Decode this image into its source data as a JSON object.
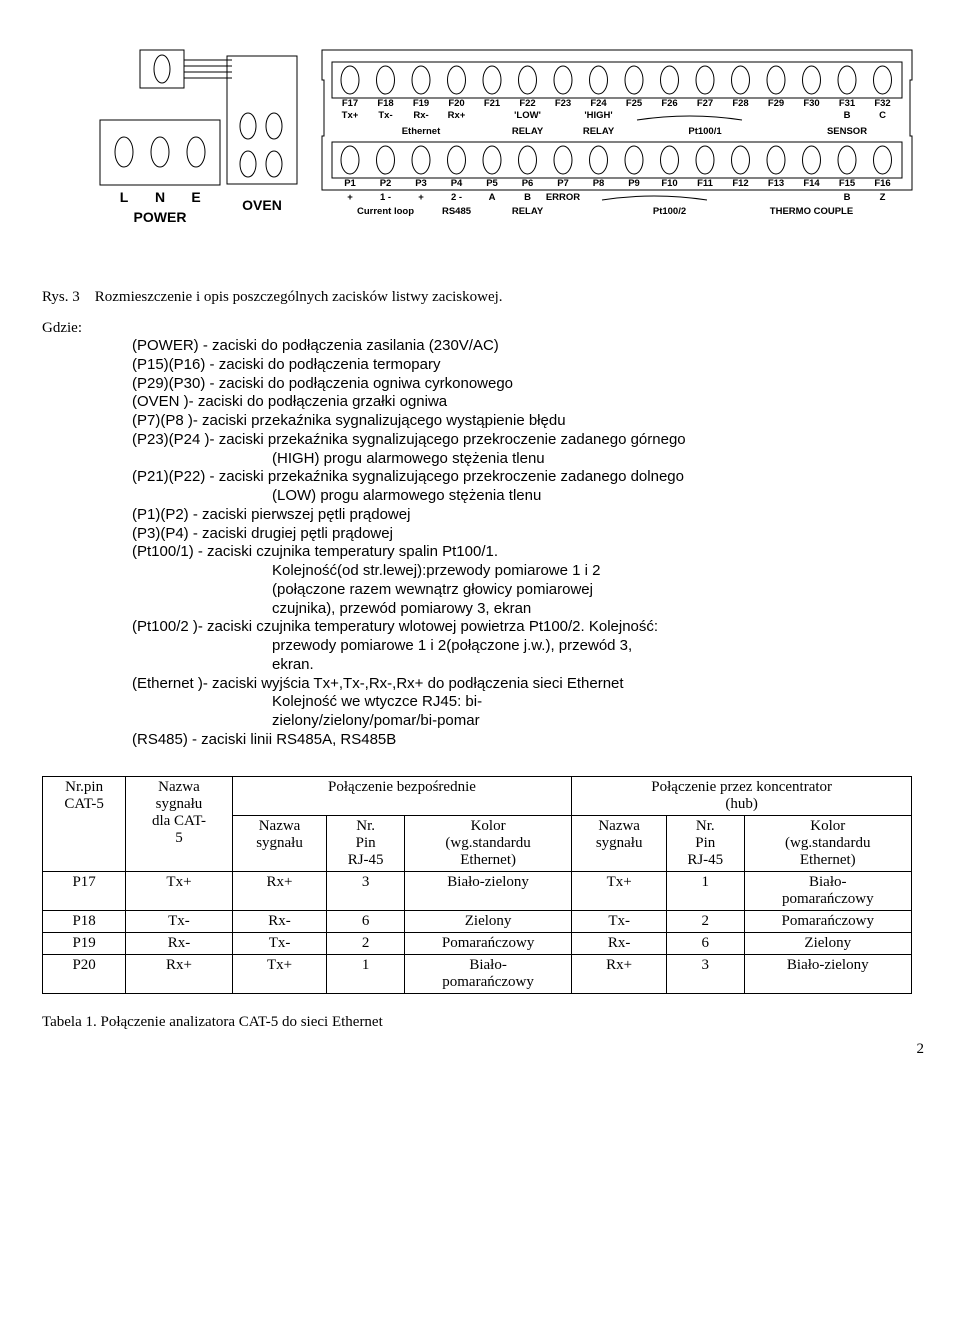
{
  "diagram": {
    "power": {
      "letters": [
        "L",
        "N",
        "E"
      ],
      "label": "POWER"
    },
    "oven_label": "OVEN",
    "top_pins": {
      "names": [
        "F17",
        "F18",
        "F19",
        "F20",
        "F21",
        "F22",
        "F23",
        "F24",
        "F25",
        "F26",
        "F27",
        "F28",
        "F29",
        "F30",
        "F31",
        "F32"
      ],
      "signals": [
        "Tx+",
        "Tx-",
        "Rx-",
        "Rx+",
        "",
        "'LOW'",
        "",
        "'HIGH'",
        "",
        "",
        "",
        "",
        "",
        "",
        "B",
        "C"
      ],
      "labels": [
        "",
        "",
        "Ethernet",
        "",
        "",
        "RELAY",
        "",
        "RELAY",
        "",
        "",
        "Pt100/1",
        "",
        "",
        "",
        "SENSOR",
        ""
      ]
    },
    "bottom_pins": {
      "names": [
        "P1",
        "P2",
        "P3",
        "P4",
        "P5",
        "P6",
        "P7",
        "P8",
        "P9",
        "F10",
        "F11",
        "F12",
        "F13",
        "F14",
        "F15",
        "F16"
      ],
      "signals": [
        "+",
        "1 -",
        "+",
        "2 -",
        "A",
        "B",
        "ERROR",
        "",
        "",
        "",
        "",
        "",
        "",
        "",
        "B",
        "Z"
      ],
      "labels": [
        "",
        "Current loop",
        "",
        "RS485",
        "",
        "RELAY",
        "",
        "",
        "",
        "Pt100/2",
        "",
        "",
        "",
        "THERMO COUPLE",
        "",
        ""
      ]
    }
  },
  "fig_caption": {
    "prefix": "Rys. 3",
    "text": "Rozmieszczenie i opis poszczególnych zacisków listwy zaciskowej."
  },
  "gdzie_label": "Gdzie:",
  "defs": [
    "(POWER)  - zaciski do podłączenia zasilania (230V/AC)",
    "(P15)(P16)  - zaciski do podłączenia termopary",
    "(P29)(P30) - zaciski do podłączenia ogniwa cyrkonowego",
    "(OVEN )- zaciski do podłączenia grzałki ogniwa",
    "(P7)(P8 )- zaciski przekaźnika sygnalizującego wystąpienie błędu",
    "(P23)(P24 )- zaciski przekaźnika sygnalizującego przekroczenie zadanego górnego"
  ],
  "defs_high": "(HIGH) progu alarmowego stężenia tlenu",
  "defs2": [
    "(P21)(P22)  - zaciski przekaźnika sygnalizującego przekroczenie  zadanego dolnego"
  ],
  "defs_low": "(LOW) progu alarmowego stężenia tlenu",
  "defs3": [
    "(P1)(P2)  - zaciski pierwszej pętli prądowej",
    "(P3)(P4) - zaciski drugiej pętli prądowej",
    "(Pt100/1) - zaciski czujnika temperatury spalin Pt100/1."
  ],
  "kolej1a": "Kolejność(od str.lewej):przewody pomiarowe 1 i 2",
  "kolej1b": "(połączone razem wewnątrz głowicy pomiarowej",
  "kolej1c": "czujnika), przewód pomiarowy 3, ekran",
  "defs4": "(Pt100/2 )- zaciski czujnika temperatury wlotowej powietrza Pt100/2. Kolejność:",
  "kolej2a": "przewody pomiarowe 1 i 2(połączone j.w.), przewód 3,",
  "kolej2b": "ekran.",
  "defs5": "(Ethernet )- zaciski wyjścia Tx+,Tx-,Rx-,Rx+ do podłączenia sieci Ethernet",
  "kolej3a": "Kolejność we wtyczce RJ45: bi-",
  "kolej3b": "zielony/zielony/pomar/bi-pomar",
  "defs6": "(RS485)  - zaciski linii RS485A, RS485B",
  "table": {
    "headers": {
      "col1a": "Nr.pin",
      "col1b": "CAT-5",
      "col2a": "Nazwa",
      "col2b": "sygnału",
      "col2c": "dla CAT-",
      "col2d": "5",
      "group1": "Połączenie bezpośrednie",
      "group2a": "Połączenie przez koncentrator",
      "group2b": "(hub)",
      "sub_name_a": "Nazwa",
      "sub_name_b": "sygnału",
      "sub_pin_a": "Nr.",
      "sub_pin_b": "Pin",
      "sub_pin_c": "RJ-45",
      "sub_color_a": "Kolor",
      "sub_color_b": "(wg.standardu",
      "sub_color_c": "Ethernet)"
    },
    "rows": [
      {
        "pin": "P17",
        "sig": "Tx+",
        "d_sig": "Rx+",
        "d_pin": "3",
        "d_col": "Biało-zielony",
        "h_sig": "Tx+",
        "h_pin": "1",
        "h_col": "Biało-\npomarańczowy"
      },
      {
        "pin": "P18",
        "sig": "Tx-",
        "d_sig": "Rx-",
        "d_pin": "6",
        "d_col": "Zielony",
        "h_sig": "Tx-",
        "h_pin": "2",
        "h_col": "Pomarańczowy"
      },
      {
        "pin": "P19",
        "sig": "Rx-",
        "d_sig": "Tx-",
        "d_pin": "2",
        "d_col": "Pomarańczowy",
        "h_sig": "Rx-",
        "h_pin": "6",
        "h_col": "Zielony"
      },
      {
        "pin": "P20",
        "sig": "Rx+",
        "d_sig": "Tx+",
        "d_pin": "1",
        "d_col": "Biało-\npomarańczowy",
        "h_sig": "Rx+",
        "h_pin": "3",
        "h_col": "Biało-zielony"
      }
    ]
  },
  "table_caption": "Tabela 1.  Połączenie analizatora CAT-5 do sieci Ethernet",
  "page_number": "2",
  "colors": {
    "stroke": "#000000",
    "bg": "#ffffff"
  }
}
